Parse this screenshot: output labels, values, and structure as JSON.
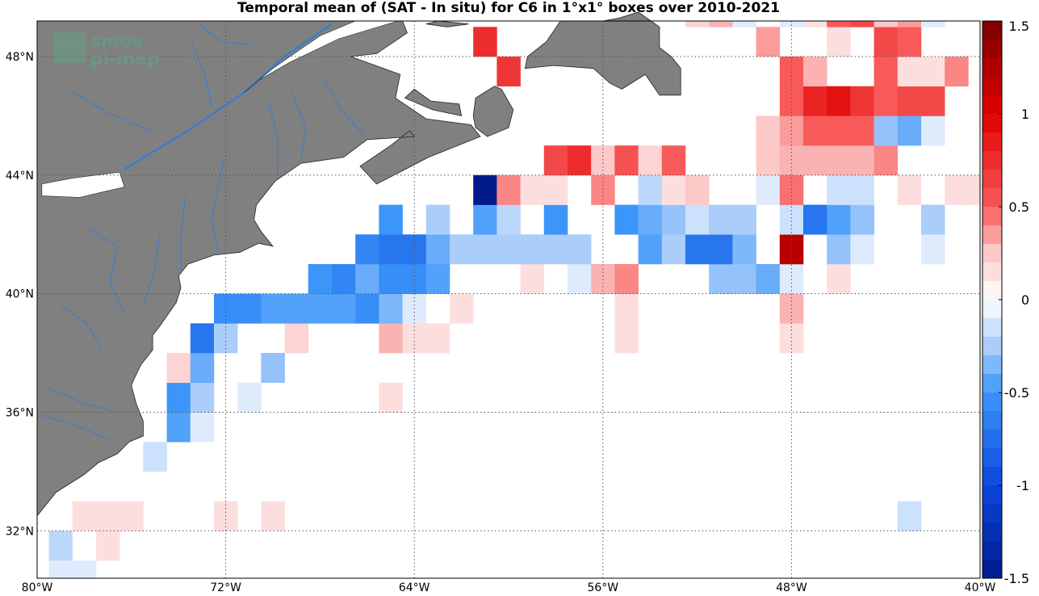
{
  "chart_data": {
    "type": "heatmap",
    "title": "Temporal mean of (SAT - In situ) for C6 in 1°x1° boxes over 2010-2021",
    "x_ticks": [
      "80°W",
      "72°W",
      "64°W",
      "56°W",
      "48°W",
      "40°W"
    ],
    "y_ticks": [
      "48°N",
      "44°N",
      "40°N",
      "36°N",
      "32°N"
    ],
    "x_tick_values": [
      -80,
      -72,
      -64,
      -56,
      -48,
      -40
    ],
    "y_tick_values": [
      48,
      44,
      40,
      36,
      32
    ],
    "xlim": [
      -80,
      -40
    ],
    "ylim": [
      30.4,
      49.2
    ],
    "grid": true,
    "colorbar": {
      "ticks": [
        "1.5",
        "1",
        "0.5",
        "0",
        "-0.5",
        "-1",
        "-1.5"
      ],
      "tick_values": [
        1.5,
        1,
        0.5,
        0,
        -0.5,
        -1,
        -1.5
      ],
      "range": [
        -1.5,
        1.5
      ]
    },
    "cells_lon_lat_value": [
      [
        -79,
        30.5,
        -0.1
      ],
      [
        -78,
        30.5,
        -0.1
      ],
      [
        -79,
        31.5,
        -0.2
      ],
      [
        -78,
        31.5,
        0.0
      ],
      [
        -77,
        31.5,
        0.15
      ],
      [
        -78,
        32.5,
        0.15
      ],
      [
        -77,
        32.5,
        0.15
      ],
      [
        -76,
        32.5,
        0.15
      ],
      [
        -72,
        32.5,
        0.15
      ],
      [
        -70,
        32.5,
        0.15
      ],
      [
        -43,
        32.5,
        -0.15
      ],
      [
        -75,
        34.5,
        -0.15
      ],
      [
        -74,
        35.5,
        -0.45
      ],
      [
        -73,
        35.5,
        -0.1
      ],
      [
        -74,
        36.5,
        -0.5
      ],
      [
        -73,
        36.5,
        -0.25
      ],
      [
        -71,
        36.5,
        -0.1
      ],
      [
        -65,
        36.5,
        0.15
      ],
      [
        -74,
        37.5,
        0.2
      ],
      [
        -73,
        37.5,
        -0.4
      ],
      [
        -70,
        37.5,
        -0.3
      ],
      [
        -73,
        38.5,
        -0.7
      ],
      [
        -72,
        38.5,
        -0.25
      ],
      [
        -69,
        38.5,
        0.2
      ],
      [
        -65,
        38.5,
        0.3
      ],
      [
        -64,
        38.5,
        0.15
      ],
      [
        -63,
        38.5,
        0.15
      ],
      [
        -55,
        38.5,
        0.15
      ],
      [
        -48,
        38.5,
        0.15
      ],
      [
        -72,
        39.5,
        -0.55
      ],
      [
        -71,
        39.5,
        -0.55
      ],
      [
        -70,
        39.5,
        -0.45
      ],
      [
        -69,
        39.5,
        -0.45
      ],
      [
        -68,
        39.5,
        -0.45
      ],
      [
        -67,
        39.5,
        -0.45
      ],
      [
        -66,
        39.5,
        -0.55
      ],
      [
        -65,
        39.5,
        -0.35
      ],
      [
        -64,
        39.5,
        -0.1
      ],
      [
        -62,
        39.5,
        0.15
      ],
      [
        -55,
        39.5,
        0.15
      ],
      [
        -48,
        39.5,
        0.3
      ],
      [
        -68,
        40.5,
        -0.5
      ],
      [
        -67,
        40.5,
        -0.6
      ],
      [
        -66,
        40.5,
        -0.4
      ],
      [
        -65,
        40.5,
        -0.55
      ],
      [
        -64,
        40.5,
        -0.55
      ],
      [
        -63,
        40.5,
        -0.45
      ],
      [
        -59,
        40.5,
        0.15
      ],
      [
        -57,
        40.5,
        -0.1
      ],
      [
        -56,
        40.5,
        0.3
      ],
      [
        -55,
        40.5,
        0.4
      ],
      [
        -51,
        40.5,
        -0.3
      ],
      [
        -50,
        40.5,
        -0.3
      ],
      [
        -49,
        40.5,
        -0.4
      ],
      [
        -48,
        40.5,
        -0.1
      ],
      [
        -46,
        40.5,
        0.15
      ],
      [
        -66,
        41.5,
        -0.6
      ],
      [
        -65,
        41.5,
        -0.7
      ],
      [
        -64,
        41.5,
        -0.7
      ],
      [
        -63,
        41.5,
        -0.4
      ],
      [
        -62,
        41.5,
        -0.25
      ],
      [
        -61,
        41.5,
        -0.25
      ],
      [
        -60,
        41.5,
        -0.25
      ],
      [
        -59,
        41.5,
        -0.25
      ],
      [
        -58,
        41.5,
        -0.25
      ],
      [
        -57,
        41.5,
        -0.25
      ],
      [
        -54,
        41.5,
        -0.45
      ],
      [
        -53,
        41.5,
        -0.25
      ],
      [
        -52,
        41.5,
        -0.7
      ],
      [
        -51,
        41.5,
        -0.7
      ],
      [
        -50,
        41.5,
        -0.35
      ],
      [
        -48,
        41.5,
        1.2
      ],
      [
        -46,
        41.5,
        -0.3
      ],
      [
        -45,
        41.5,
        -0.1
      ],
      [
        -42,
        41.5,
        -0.1
      ],
      [
        -65,
        42.5,
        -0.5
      ],
      [
        -63,
        42.5,
        -0.25
      ],
      [
        -61,
        42.5,
        -0.45
      ],
      [
        -60,
        42.5,
        -0.2
      ],
      [
        -58,
        42.5,
        -0.5
      ],
      [
        -55,
        42.5,
        -0.5
      ],
      [
        -54,
        42.5,
        -0.4
      ],
      [
        -53,
        42.5,
        -0.3
      ],
      [
        -52,
        42.5,
        -0.15
      ],
      [
        -51,
        42.5,
        -0.25
      ],
      [
        -50,
        42.5,
        -0.25
      ],
      [
        -48,
        42.5,
        -0.15
      ],
      [
        -47,
        42.5,
        -0.7
      ],
      [
        -46,
        42.5,
        -0.45
      ],
      [
        -45,
        42.5,
        -0.3
      ],
      [
        -42,
        42.5,
        -0.25
      ],
      [
        -61,
        43.5,
        -1.5
      ],
      [
        -60,
        43.5,
        0.4
      ],
      [
        -59,
        43.5,
        0.15
      ],
      [
        -58,
        43.5,
        0.15
      ],
      [
        -56,
        43.5,
        0.4
      ],
      [
        -54,
        43.5,
        -0.2
      ],
      [
        -53,
        43.5,
        0.15
      ],
      [
        -52,
        43.5,
        0.25
      ],
      [
        -49,
        43.5,
        -0.1
      ],
      [
        -48,
        43.5,
        0.45
      ],
      [
        -46,
        43.5,
        -0.15
      ],
      [
        -45,
        43.5,
        -0.15
      ],
      [
        -43,
        43.5,
        0.15
      ],
      [
        -41,
        43.5,
        0.15
      ],
      [
        -40.5,
        43.5,
        0.15
      ],
      [
        -58,
        44.5,
        0.6
      ],
      [
        -57,
        44.5,
        0.75
      ],
      [
        -56,
        44.5,
        0.25
      ],
      [
        -55,
        44.5,
        0.55
      ],
      [
        -54,
        44.5,
        0.2
      ],
      [
        -53,
        44.5,
        0.5
      ],
      [
        -49,
        44.5,
        0.25
      ],
      [
        -48,
        44.5,
        0.3
      ],
      [
        -47,
        44.5,
        0.3
      ],
      [
        -46,
        44.5,
        0.3
      ],
      [
        -45,
        44.5,
        0.3
      ],
      [
        -44,
        44.5,
        0.4
      ],
      [
        -49,
        45.5,
        0.25
      ],
      [
        -48,
        45.5,
        0.35
      ],
      [
        -47,
        45.5,
        0.5
      ],
      [
        -46,
        45.5,
        0.5
      ],
      [
        -45,
        45.5,
        0.5
      ],
      [
        -44,
        45.5,
        -0.3
      ],
      [
        -43,
        45.5,
        -0.4
      ],
      [
        -42,
        45.5,
        -0.1
      ],
      [
        -48,
        46.5,
        0.5
      ],
      [
        -47,
        46.5,
        0.8
      ],
      [
        -46,
        46.5,
        0.9
      ],
      [
        -45,
        46.5,
        0.7
      ],
      [
        -44,
        46.5,
        0.5
      ],
      [
        -43,
        46.5,
        0.6
      ],
      [
        -42,
        46.5,
        0.6
      ],
      [
        -60,
        47.5,
        0.7
      ],
      [
        -48,
        47.5,
        0.5
      ],
      [
        -47,
        47.5,
        0.3
      ],
      [
        -44,
        47.5,
        0.5
      ],
      [
        -43,
        47.5,
        0.15
      ],
      [
        -42,
        47.5,
        0.15
      ],
      [
        -41,
        47.5,
        0.4
      ],
      [
        -61,
        48.5,
        0.75
      ],
      [
        -49,
        48.5,
        0.35
      ],
      [
        -46,
        48.5,
        0.15
      ],
      [
        -44,
        48.5,
        0.6
      ],
      [
        -43,
        48.5,
        0.5
      ],
      [
        -52,
        49.5,
        0.2
      ],
      [
        -51,
        49.5,
        0.3
      ],
      [
        -50,
        49.5,
        -0.1
      ],
      [
        -48,
        49.5,
        -0.1
      ],
      [
        -47,
        49.5,
        0.15
      ],
      [
        -46,
        49.5,
        0.5
      ],
      [
        -45,
        49.5,
        0.6
      ],
      [
        -44,
        49.5,
        0.25
      ],
      [
        -43,
        49.5,
        0.35
      ],
      [
        -42,
        49.5,
        -0.1
      ]
    ]
  },
  "colors": {
    "land": "#808080",
    "river": "#2f7fd8",
    "neg_max": "#001a8c",
    "pos_max": "#7a0000",
    "logo": "#5aa883"
  },
  "logo": {
    "line1": "smos",
    "line2": "pi-mep"
  }
}
